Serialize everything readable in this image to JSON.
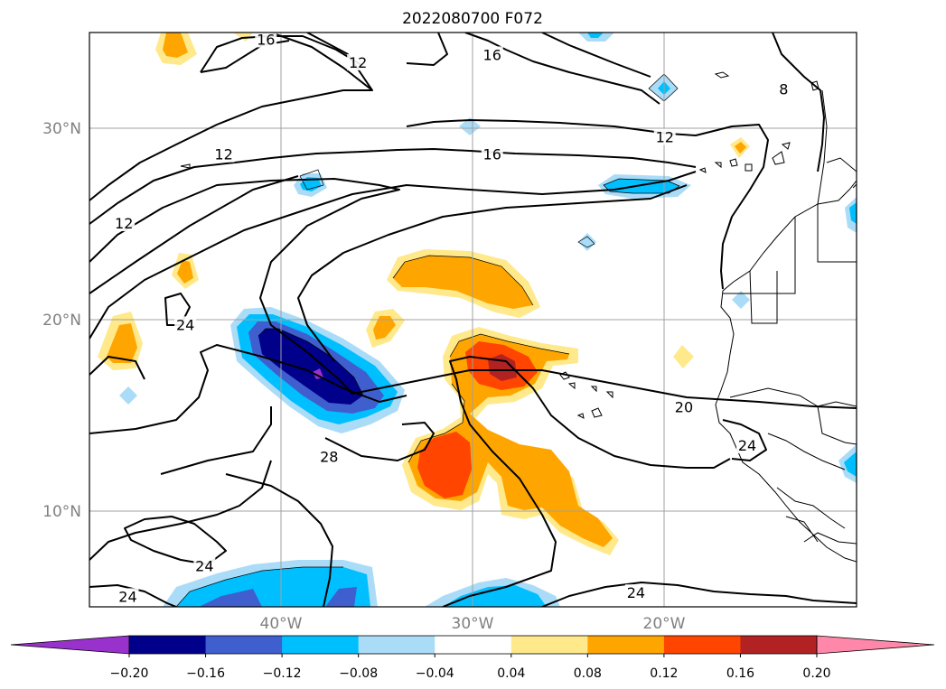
{
  "title": "2022080700 F072",
  "axes": {
    "lat_labels": [
      "30°N",
      "20°N",
      "10°N"
    ],
    "lon_labels": [
      "40°W",
      "30°W",
      "20°W"
    ]
  },
  "contour_labels": [
    {
      "text": "16",
      "lon": -40.8,
      "lat": 34.6
    },
    {
      "text": "12",
      "lon": -36.0,
      "lat": 33.4
    },
    {
      "text": "16",
      "lon": -29.0,
      "lat": 33.8
    },
    {
      "text": "12",
      "lon": -43.0,
      "lat": 28.6
    },
    {
      "text": "16",
      "lon": -29.0,
      "lat": 28.6
    },
    {
      "text": "12",
      "lon": -20.0,
      "lat": 29.5
    },
    {
      "text": "12",
      "lon": -48.2,
      "lat": 25.0
    },
    {
      "text": "24",
      "lon": -45.0,
      "lat": 19.7
    },
    {
      "text": "20",
      "lon": -19.0,
      "lat": 15.4
    },
    {
      "text": "24",
      "lon": -15.7,
      "lat": 13.4
    },
    {
      "text": "28",
      "lon": -37.5,
      "lat": 12.8
    },
    {
      "text": "24",
      "lon": -44.0,
      "lat": 7.1
    },
    {
      "text": "24",
      "lon": -48.0,
      "lat": 5.5
    },
    {
      "text": "24",
      "lon": -21.5,
      "lat": 5.7
    },
    {
      "text": "8",
      "lon": -13.8,
      "lat": 32.0
    }
  ],
  "colorbar": {
    "ticks": [
      "−0.20",
      "−0.16",
      "−0.12",
      "−0.08",
      "−0.04",
      "0.04",
      "0.08",
      "0.12",
      "0.16",
      "0.20"
    ],
    "colors": [
      "#9932cc",
      "#00008b",
      "#3f5fcf",
      "#00bfff",
      "#aadcf8",
      "#ffffff",
      "#ffe98b",
      "#ffa500",
      "#ff4500",
      "#b22222",
      "#ff88aa"
    ]
  },
  "colors": {
    "grid": "#a0a0a0",
    "axis_text": "#808080"
  }
}
